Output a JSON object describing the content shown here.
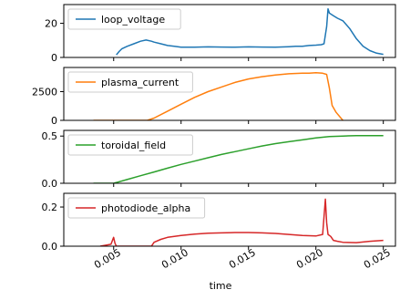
{
  "chart_data": {
    "type": "line",
    "xlabel": "time",
    "xlim": [
      0.0013,
      0.0259
    ],
    "x_ticks": [
      0.005,
      0.01,
      0.015,
      0.02,
      0.025
    ],
    "x_tick_labels": [
      "0.005",
      "0.010",
      "0.015",
      "0.020",
      "0.025"
    ],
    "subplots": [
      {
        "name": "loop_voltage",
        "color": "#1f77b4",
        "ylim": [
          0,
          31
        ],
        "yticks": [
          0,
          20
        ],
        "ytick_labels": [
          "0",
          "20"
        ],
        "legend": "loop_voltage",
        "x": [
          0.0052,
          0.0054,
          0.0056,
          0.006,
          0.0065,
          0.007,
          0.0074,
          0.0078,
          0.008,
          0.0085,
          0.009,
          0.0095,
          0.01,
          0.011,
          0.012,
          0.013,
          0.014,
          0.015,
          0.016,
          0.017,
          0.018,
          0.0185,
          0.019,
          0.0195,
          0.02,
          0.0204,
          0.0206,
          0.0208,
          0.0209,
          0.021,
          0.0213,
          0.0216,
          0.022,
          0.0225,
          0.023,
          0.0235,
          0.024,
          0.0245,
          0.025
        ],
        "y": [
          1.5,
          3.5,
          5.0,
          6.5,
          8.0,
          9.5,
          10.2,
          9.5,
          9.0,
          8.0,
          7.0,
          6.5,
          6.0,
          6.0,
          6.2,
          6.1,
          6.0,
          6.2,
          6.1,
          6.0,
          6.3,
          6.5,
          6.6,
          7.0,
          7.2,
          7.5,
          8.0,
          18.0,
          28.5,
          26.0,
          24.5,
          23.0,
          21.5,
          17.0,
          11.0,
          6.5,
          4.0,
          2.5,
          1.8
        ]
      },
      {
        "name": "plasma_current",
        "color": "#ff7f0e",
        "ylim": [
          0,
          4600
        ],
        "yticks": [
          0,
          2500
        ],
        "ytick_labels": [
          "0",
          "2500"
        ],
        "legend": "plasma_current",
        "x": [
          0.0035,
          0.005,
          0.0075,
          0.008,
          0.009,
          0.01,
          0.011,
          0.012,
          0.013,
          0.014,
          0.015,
          0.016,
          0.017,
          0.018,
          0.019,
          0.0195,
          0.02,
          0.0205,
          0.0208,
          0.021,
          0.0212,
          0.0215,
          0.022
        ],
        "y": [
          0,
          0,
          0,
          200,
          800,
          1400,
          2000,
          2500,
          2900,
          3300,
          3600,
          3800,
          3950,
          4050,
          4100,
          4100,
          4150,
          4100,
          4000,
          2800,
          1300,
          700,
          0
        ]
      },
      {
        "name": "toroidal_field",
        "color": "#2ca02c",
        "ylim": [
          0,
          0.56
        ],
        "yticks": [
          0.0,
          0.5
        ],
        "ytick_labels": [
          "0.0",
          "0.5"
        ],
        "legend": "toroidal_field",
        "x": [
          0.0035,
          0.005,
          0.006,
          0.007,
          0.008,
          0.009,
          0.01,
          0.011,
          0.012,
          0.013,
          0.014,
          0.015,
          0.016,
          0.017,
          0.018,
          0.019,
          0.02,
          0.021,
          0.022,
          0.023,
          0.024,
          0.025
        ],
        "y": [
          0.0,
          0.0,
          0.04,
          0.08,
          0.12,
          0.16,
          0.2,
          0.235,
          0.27,
          0.305,
          0.335,
          0.365,
          0.395,
          0.42,
          0.44,
          0.46,
          0.48,
          0.495,
          0.5,
          0.505,
          0.505,
          0.505
        ]
      },
      {
        "name": "photodiode_alpha",
        "color": "#d62728",
        "ylim": [
          0,
          0.27
        ],
        "yticks": [
          0.0,
          0.2
        ],
        "ytick_labels": [
          "0.0",
          "0.2"
        ],
        "legend": "photodiode_alpha",
        "x": [
          0.004,
          0.0048,
          0.005,
          0.0051,
          0.0052,
          0.0053,
          0.0055,
          0.0078,
          0.008,
          0.0085,
          0.009,
          0.01,
          0.011,
          0.012,
          0.013,
          0.014,
          0.015,
          0.016,
          0.017,
          0.018,
          0.019,
          0.02,
          0.0205,
          0.0207,
          0.0208,
          0.0209,
          0.0211,
          0.0213,
          0.0216,
          0.022,
          0.023,
          0.024,
          0.025
        ],
        "y": [
          0.0,
          0.01,
          0.045,
          0.015,
          0.0,
          0.0,
          0.0,
          0.0,
          0.02,
          0.035,
          0.045,
          0.055,
          0.062,
          0.066,
          0.068,
          0.07,
          0.07,
          0.068,
          0.065,
          0.06,
          0.055,
          0.052,
          0.06,
          0.24,
          0.12,
          0.06,
          0.05,
          0.03,
          0.025,
          0.02,
          0.018,
          0.025,
          0.03
        ]
      }
    ]
  }
}
